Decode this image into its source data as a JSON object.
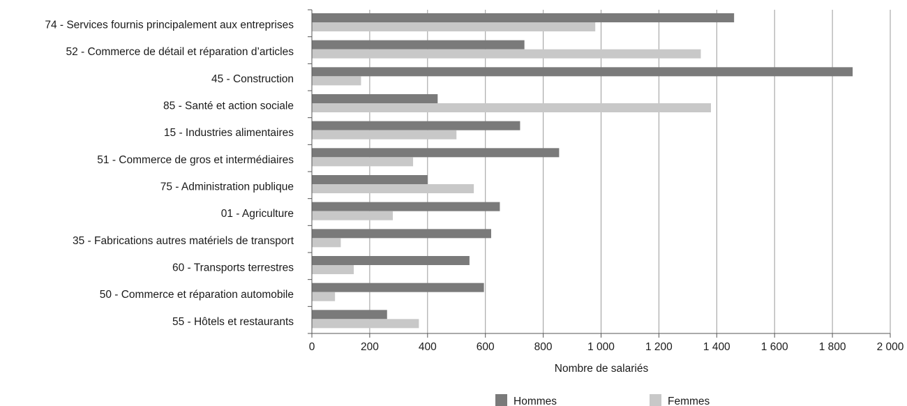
{
  "chart_data": {
    "type": "bar",
    "orientation": "horizontal",
    "title": "",
    "xlabel": "Nombre de salariés",
    "ylabel": "",
    "xlim": [
      0,
      2000
    ],
    "xticks": [
      0,
      200,
      400,
      600,
      800,
      1000,
      1200,
      1400,
      1600,
      1800,
      2000
    ],
    "xtick_labels": [
      "0",
      "200",
      "400",
      "600",
      "800",
      "1 000",
      "1 200",
      "1 400",
      "1 600",
      "1 800",
      "2 000"
    ],
    "grid": "vertical",
    "legend_position": "bottom",
    "categories": [
      "74 - Services fournis principalement aux entreprises",
      "52 - Commerce de détail et réparation d’articles",
      "45 - Construction",
      "85 - Santé et action sociale",
      "15 - Industries alimentaires",
      "51 - Commerce de gros et intermédiaires",
      "75 - Administration publique",
      "01 - Agriculture",
      "35 - Fabrications autres matériels de transport",
      "60 - Transports terrestres",
      "50 - Commerce et réparation automobile",
      "55 - Hôtels et restaurants"
    ],
    "series": [
      {
        "name": "Hommes",
        "color": "#7a7a7a",
        "values": [
          1460,
          735,
          1870,
          435,
          720,
          855,
          400,
          650,
          620,
          545,
          595,
          260
        ]
      },
      {
        "name": "Femmes",
        "color": "#c8c8c8",
        "values": [
          980,
          1345,
          170,
          1380,
          500,
          350,
          560,
          280,
          100,
          145,
          80,
          370
        ]
      }
    ]
  }
}
